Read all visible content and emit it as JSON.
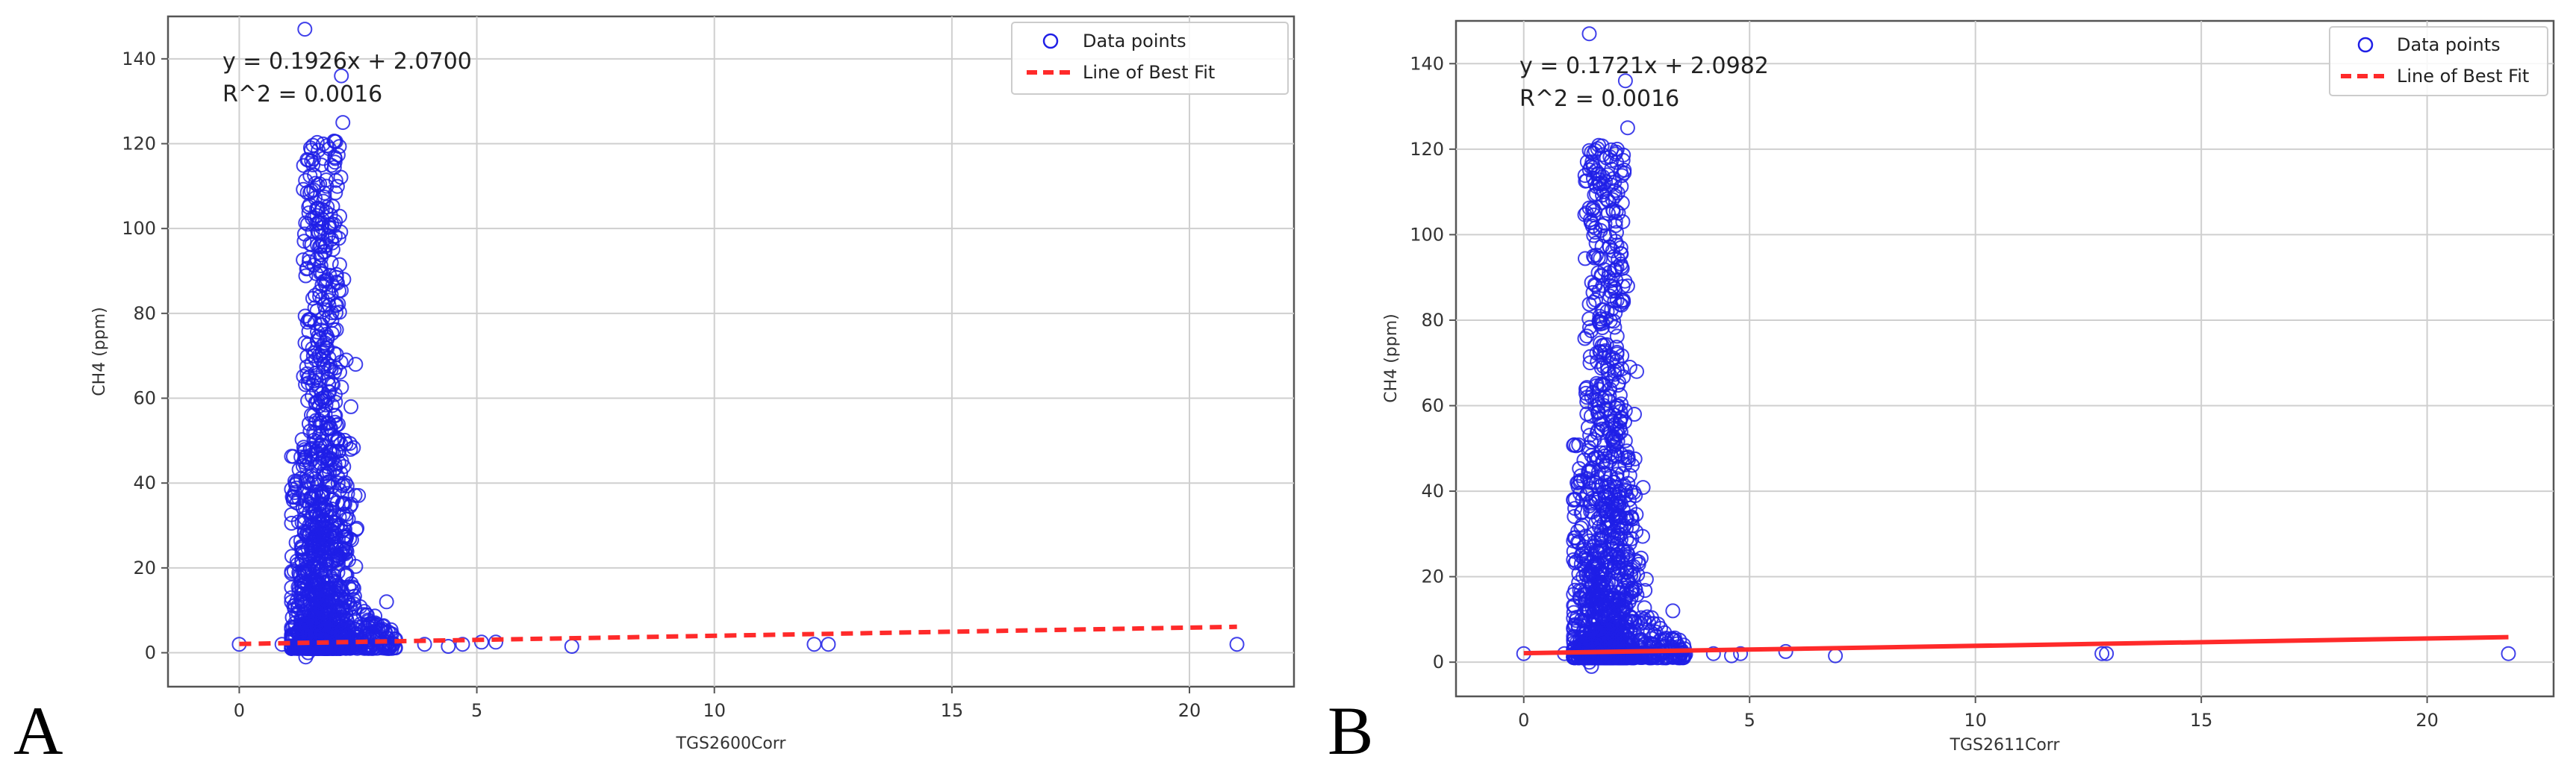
{
  "chart_data": [
    {
      "panel": "A",
      "type": "scatter",
      "xlabel": "TGS2600Corr",
      "ylabel": "CH4 (ppm)",
      "xlim": [
        -1.5,
        22.2
      ],
      "ylim": [
        -8,
        150
      ],
      "xticks": [
        0,
        5,
        10,
        15,
        20
      ],
      "yticks": [
        0,
        20,
        40,
        60,
        80,
        100,
        120,
        140
      ],
      "grid": true,
      "legend_position": "top-right",
      "legend": [
        "Data points",
        "Line of Best Fit"
      ],
      "annotations": [
        "y = 0.1926x + 2.0700",
        "R^2 = 0.0016"
      ],
      "fit": {
        "slope": 0.1926,
        "intercept": 2.07
      },
      "cluster": {
        "x_center": 1.75,
        "x_spread": 0.45,
        "x_min": 1.1,
        "x_max": 2.6,
        "y_max": 120
      },
      "tail": {
        "x_min": 2.4,
        "x_max": 3.3,
        "y_max": 12
      },
      "outliers": [
        {
          "x": 0.0,
          "y": 2.0
        },
        {
          "x": 0.9,
          "y": 2.0
        },
        {
          "x": 3.9,
          "y": 2.0
        },
        {
          "x": 4.4,
          "y": 1.5
        },
        {
          "x": 4.7,
          "y": 2.0
        },
        {
          "x": 5.1,
          "y": 2.5
        },
        {
          "x": 5.4,
          "y": 2.5
        },
        {
          "x": 7.0,
          "y": 1.5
        },
        {
          "x": 12.1,
          "y": 2.0
        },
        {
          "x": 12.4,
          "y": 2.0
        },
        {
          "x": 21.0,
          "y": 2.0
        },
        {
          "x": 1.38,
          "y": 147
        },
        {
          "x": 2.15,
          "y": 136
        },
        {
          "x": 2.18,
          "y": 125
        },
        {
          "x": 2.2,
          "y": 88
        },
        {
          "x": 1.62,
          "y": 101
        },
        {
          "x": 2.25,
          "y": 69
        },
        {
          "x": 2.45,
          "y": 68
        },
        {
          "x": 2.35,
          "y": 58
        },
        {
          "x": 3.1,
          "y": 12
        },
        {
          "x": 1.5,
          "y": 119
        },
        {
          "x": 1.55,
          "y": 115
        },
        {
          "x": 1.4,
          "y": -1
        },
        {
          "x": 1.45,
          "y": 0
        }
      ]
    },
    {
      "panel": "B",
      "type": "scatter",
      "xlabel": "TGS2611Corr",
      "ylabel": "CH4 (ppm)",
      "xlim": [
        -1.5,
        22.8
      ],
      "ylim": [
        -8,
        150
      ],
      "xticks": [
        0,
        5,
        10,
        15,
        20
      ],
      "yticks": [
        0,
        20,
        40,
        60,
        80,
        100,
        120,
        140
      ],
      "grid": true,
      "legend_position": "top-right",
      "legend": [
        "Data points",
        "Line of Best Fit"
      ],
      "annotations": [
        "y = 0.1721x + 2.0982",
        "R^2 = 0.0016"
      ],
      "fit": {
        "slope": 0.1721,
        "intercept": 2.0982
      },
      "cluster": {
        "x_center": 1.8,
        "x_spread": 0.5,
        "x_min": 1.1,
        "x_max": 2.8,
        "y_max": 120
      },
      "tail": {
        "x_min": 2.5,
        "x_max": 3.6,
        "y_max": 12
      },
      "outliers": [
        {
          "x": 0.0,
          "y": 2.0
        },
        {
          "x": 0.9,
          "y": 2.0
        },
        {
          "x": 4.2,
          "y": 2.0
        },
        {
          "x": 4.6,
          "y": 1.5
        },
        {
          "x": 4.8,
          "y": 2.0
        },
        {
          "x": 5.8,
          "y": 2.5
        },
        {
          "x": 6.9,
          "y": 1.5
        },
        {
          "x": 12.8,
          "y": 2.0
        },
        {
          "x": 12.9,
          "y": 2.0
        },
        {
          "x": 21.8,
          "y": 2.0
        },
        {
          "x": 1.45,
          "y": 147
        },
        {
          "x": 2.25,
          "y": 136
        },
        {
          "x": 2.3,
          "y": 125
        },
        {
          "x": 2.3,
          "y": 88
        },
        {
          "x": 1.7,
          "y": 101
        },
        {
          "x": 2.35,
          "y": 69
        },
        {
          "x": 2.5,
          "y": 68
        },
        {
          "x": 2.45,
          "y": 58
        },
        {
          "x": 3.3,
          "y": 12
        },
        {
          "x": 1.55,
          "y": 119
        },
        {
          "x": 1.6,
          "y": 115
        },
        {
          "x": 1.5,
          "y": -1
        },
        {
          "x": 1.45,
          "y": 0
        }
      ]
    }
  ],
  "colors": {
    "points": "#1f1fe6",
    "fit_line": "#ff2a2a",
    "grid": "#cfcfcf",
    "frame": "#555555"
  }
}
